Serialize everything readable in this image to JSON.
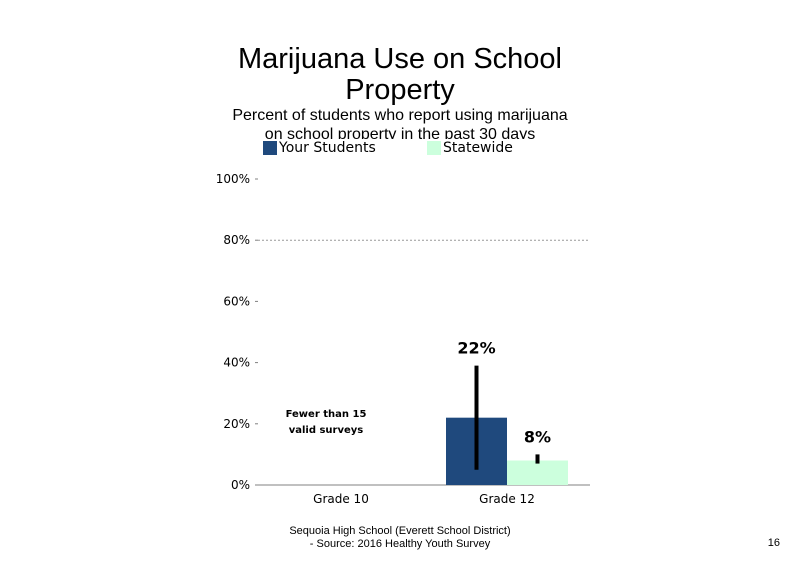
{
  "chart_data": {
    "type": "bar",
    "title_lines": [
      "Marijuana Use on School",
      "Property"
    ],
    "subtitle_lines": [
      "Percent of students who report using marijuana",
      "on school property in the past 30 days"
    ],
    "categories": [
      "Grade 10",
      "Grade 12"
    ],
    "series": [
      {
        "name": "Your Students",
        "color": "#1f497d",
        "values": [
          null,
          22
        ],
        "labels": [
          "",
          "22%"
        ],
        "error_low": [
          null,
          5
        ],
        "error_high": [
          null,
          39
        ]
      },
      {
        "name": "Statewide",
        "color": "#ccffdd",
        "values": [
          null,
          8
        ],
        "labels": [
          "",
          "8%"
        ],
        "error_low": [
          null,
          7
        ],
        "error_high": [
          null,
          10
        ]
      }
    ],
    "annotations": [
      {
        "category": "Grade 10",
        "lines": [
          "Fewer than 15",
          "valid surveys"
        ]
      }
    ],
    "y_ticks": [
      "0%",
      "20%",
      "40%",
      "60%",
      "80%",
      "100%"
    ],
    "ylim": [
      0,
      100
    ],
    "grid_values": [
      80
    ],
    "legend_position": "top"
  },
  "footer": {
    "line1": "Sequoia High School (Everett School District)",
    "line2": "- Source: 2016 Healthy Youth Survey"
  },
  "page_number": "16"
}
